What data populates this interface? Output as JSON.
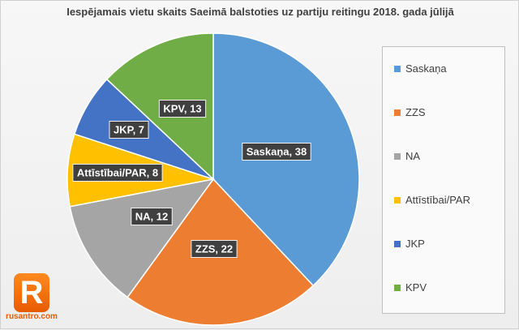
{
  "chart_data": {
    "type": "pie",
    "title": "Iespējamais vietu skaits Saeimā balstoties uz partiju reitingu 2018. gada jūlijā",
    "slices": [
      {
        "name": "Saskaņa",
        "value": 38,
        "label": "Saskaņa, 38",
        "color": "#5b9bd5"
      },
      {
        "name": "ZZS",
        "value": 22,
        "label": "ZZS, 22",
        "color": "#ed7d31"
      },
      {
        "name": "NA",
        "value": 12,
        "label": "NA, 12",
        "color": "#a5a5a5"
      },
      {
        "name": "Attīstībai/PAR",
        "value": 8,
        "label": "Attīstībai/PAR, 8",
        "color": "#ffc000"
      },
      {
        "name": "JKP",
        "value": 7,
        "label": "JKP, 7",
        "color": "#4472c4"
      },
      {
        "name": "KPV",
        "value": 13,
        "label": "KPV, 13",
        "color": "#70ad47"
      }
    ],
    "legend_position": "right"
  },
  "logo": {
    "letter": "R",
    "text": "rusantro.com"
  }
}
